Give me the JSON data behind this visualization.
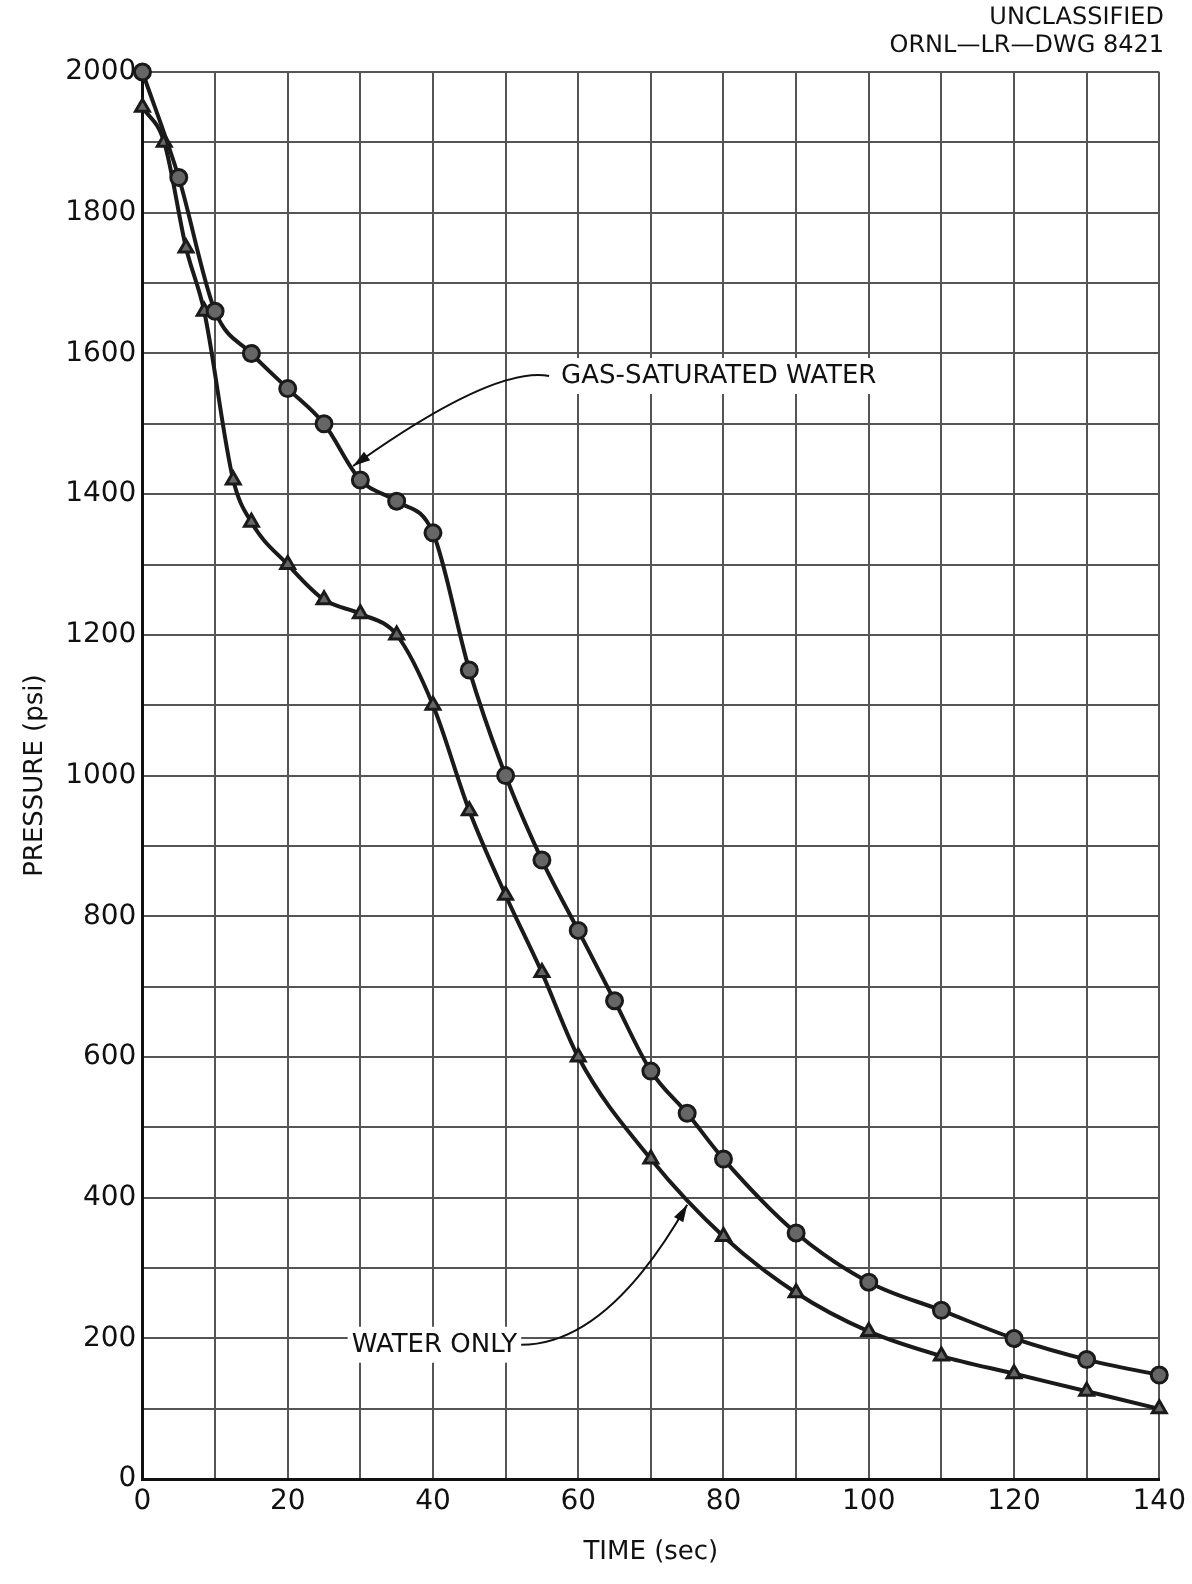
{
  "chart_data": {
    "type": "line",
    "xlabel": "TIME (sec)",
    "ylabel": "PRESSURE (psi)",
    "xlim": [
      0,
      140
    ],
    "ylim": [
      0,
      2000
    ],
    "xticks": [
      0,
      {
        "value": 10,
        "label": null
      },
      20,
      {
        "value": 30,
        "label": null
      },
      40,
      {
        "value": 50,
        "label": null
      },
      60,
      {
        "value": 70,
        "label": null
      },
      80,
      {
        "value": 90,
        "label": null
      },
      100,
      {
        "value": 110,
        "label": null
      },
      120,
      {
        "value": 130,
        "label": null
      },
      140
    ],
    "yticks": [
      0,
      {
        "value": 100,
        "label": null
      },
      200,
      {
        "value": 300,
        "label": null
      },
      400,
      {
        "value": 500,
        "label": null
      },
      600,
      {
        "value": 700,
        "label": null
      },
      800,
      {
        "value": 900,
        "label": null
      },
      1000,
      {
        "value": 1100,
        "label": null
      },
      1200,
      {
        "value": 1300,
        "label": null
      },
      1400,
      {
        "value": 1500,
        "label": null
      },
      1600,
      {
        "value": 1700,
        "label": null
      },
      1800,
      {
        "value": 1900,
        "label": null
      },
      2000
    ],
    "grid": true,
    "legend": false,
    "line_style": "solid",
    "series": [
      {
        "color": "#1a1a1a",
        "marker": "circle",
        "x": [
          0,
          5,
          10,
          15,
          20,
          25,
          30,
          35,
          40,
          45,
          50,
          55,
          60,
          65,
          70,
          75,
          80,
          90,
          100,
          110,
          120,
          130,
          140
        ],
        "values": [
          2000,
          1850,
          1660,
          1600,
          1550,
          1500,
          1420,
          1390,
          1345,
          1150,
          1000,
          880,
          780,
          680,
          580,
          520,
          455,
          350,
          280,
          240,
          200,
          170,
          148
        ]
      },
      {
        "color": "#1a1a1a",
        "marker": "triangle",
        "x": [
          0,
          3,
          6,
          8.5,
          12.5,
          15,
          20,
          25,
          30,
          35,
          40,
          45,
          50,
          55,
          60,
          70,
          80,
          90,
          100,
          110,
          120,
          130,
          140
        ],
        "values": [
          1950,
          1900,
          1750,
          1660,
          1420,
          1360,
          1300,
          1250,
          1230,
          1200,
          1100,
          950,
          830,
          720,
          600,
          455,
          345,
          265,
          210,
          175,
          150,
          125,
          100
        ]
      }
    ],
    "annotations": [
      "UNCLASSIFIED",
      "ORNL—LR—DWG 8421",
      {
        "text": "GAS-SATURATED WATER",
        "x": 29,
        "y": 1440
      },
      {
        "text": "WATER ONLY",
        "x": 75,
        "y": 390
      }
    ]
  }
}
